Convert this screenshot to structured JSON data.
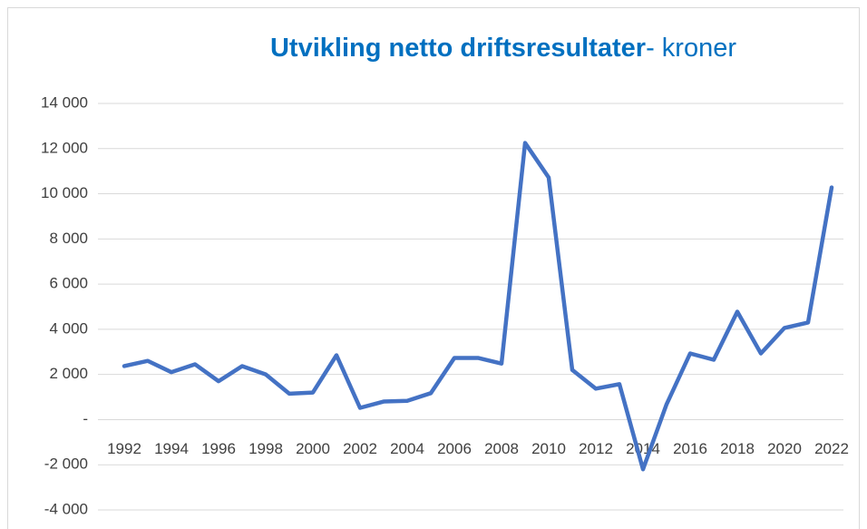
{
  "chart_data": {
    "type": "line",
    "title": "Utvikling netto driftsresultater",
    "subtitle": "- kroner",
    "x": [
      1992,
      1993,
      1994,
      1995,
      1996,
      1997,
      1998,
      1999,
      2000,
      2001,
      2002,
      2003,
      2004,
      2005,
      2006,
      2007,
      2008,
      2009,
      2010,
      2011,
      2012,
      2013,
      2014,
      2015,
      2016,
      2017,
      2018,
      2019,
      2020,
      2021,
      2022
    ],
    "series": [
      {
        "name": "Netto driftsresultat",
        "color": "#4472c4",
        "values": [
          2370,
          2600,
          2100,
          2450,
          1700,
          2370,
          2000,
          1150,
          1200,
          2850,
          520,
          800,
          830,
          1170,
          2730,
          2730,
          2480,
          12250,
          10720,
          2200,
          1370,
          1570,
          -2200,
          680,
          2930,
          2650,
          4780,
          2930,
          4060,
          4300,
          10280
        ]
      }
    ],
    "xlim": [
      1992,
      2022
    ],
    "xticks": [
      1992,
      1994,
      1996,
      1998,
      2000,
      2002,
      2004,
      2006,
      2008,
      2010,
      2012,
      2014,
      2016,
      2018,
      2020,
      2022
    ],
    "ylim": [
      -4000,
      14000
    ],
    "yticks": [
      {
        "value": -4000,
        "label": "-4 000"
      },
      {
        "value": -2000,
        "label": "-2 000"
      },
      {
        "value": 0,
        "label": "-"
      },
      {
        "value": 2000,
        "label": "2 000"
      },
      {
        "value": 4000,
        "label": "4 000"
      },
      {
        "value": 6000,
        "label": "6 000"
      },
      {
        "value": 8000,
        "label": "8 000"
      },
      {
        "value": 10000,
        "label": "10 000"
      },
      {
        "value": 12000,
        "label": "12 000"
      },
      {
        "value": 14000,
        "label": "14 000"
      }
    ],
    "grid": true
  }
}
